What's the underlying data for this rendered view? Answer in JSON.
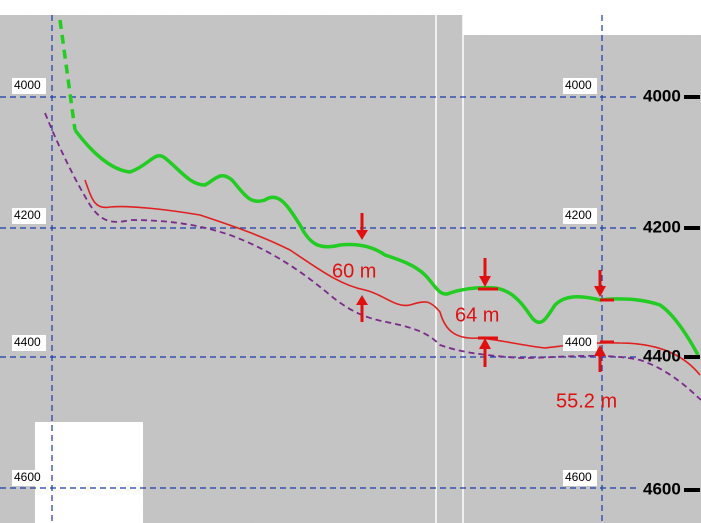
{
  "depth_labels_left": [
    "4000",
    "4200",
    "4400",
    "4600"
  ],
  "depth_labels_mid": [
    "4000",
    "4200",
    "4400",
    "4600"
  ],
  "depth_labels_right": [
    "4000",
    "4200",
    "4400",
    "4600"
  ],
  "thickness_labels": [
    "60 m",
    "64 m",
    "55.2 m"
  ]
}
